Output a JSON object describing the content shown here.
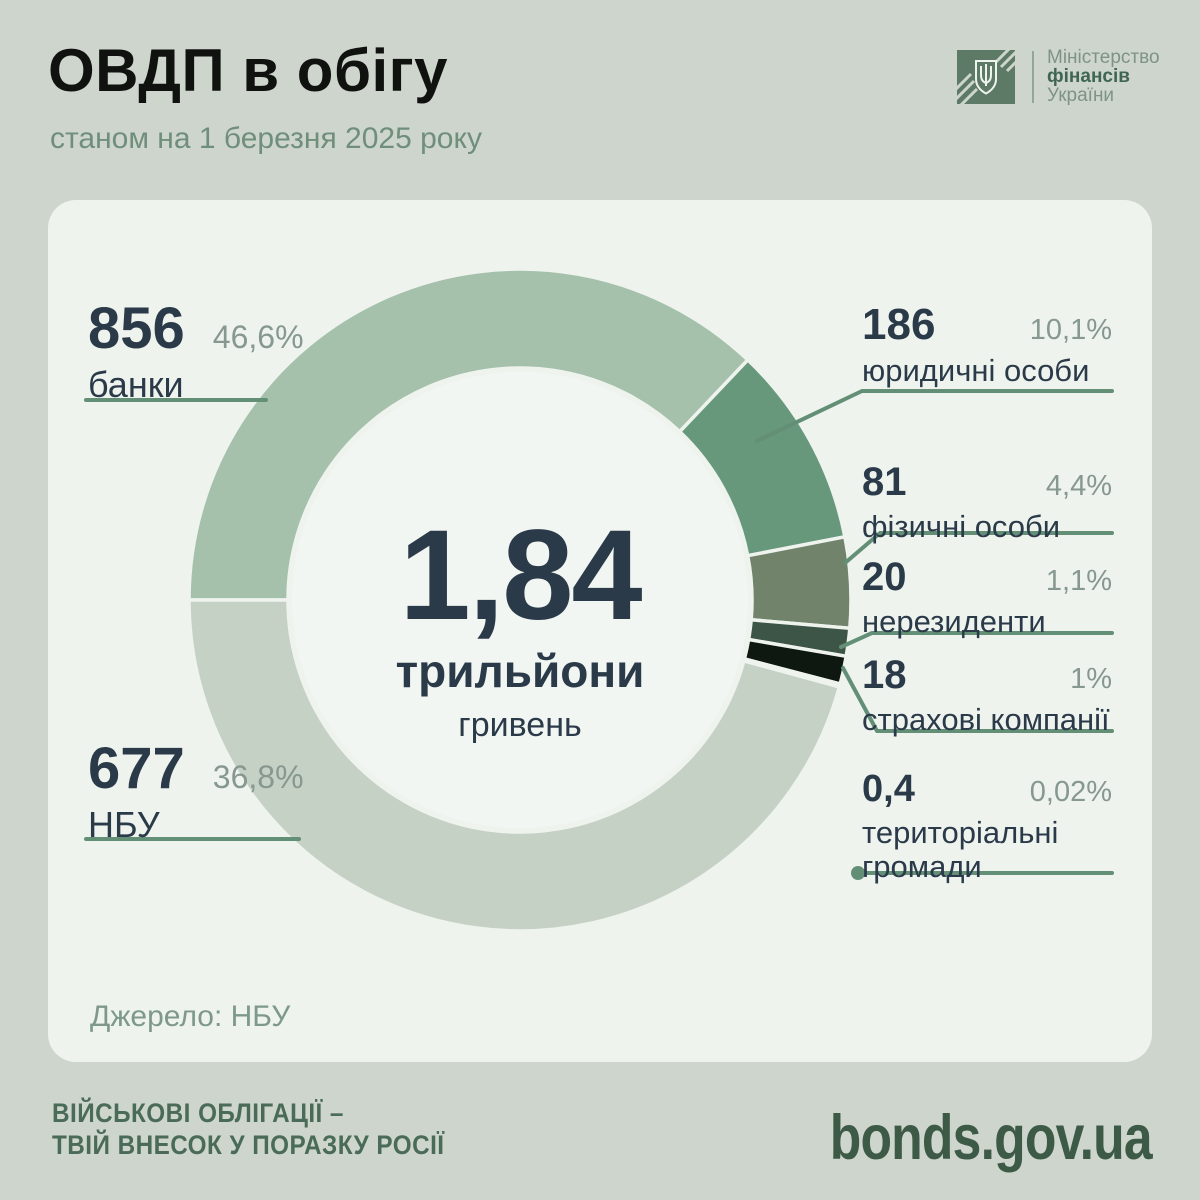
{
  "header": {
    "title": "ОВДП в обігу",
    "subtitle": "станом на 1 березня 2025 року"
  },
  "ministry": {
    "line1": "Міністерство",
    "line2": "фінансів",
    "line3": "України"
  },
  "chart_data": {
    "type": "pie",
    "subtype": "donut",
    "title": "ОВДП в обігу",
    "as_of": "станом на 1 березня 2025 року",
    "center": {
      "value": "1,84",
      "unit": "трильйони",
      "sub": "гривень"
    },
    "source": "НБУ",
    "legend_position": "around",
    "colors": {
      "page_bg": "#ced5cd",
      "card_bg": "#eef3ee",
      "leader_line": "#648f77",
      "number_text": "#2b3a49",
      "percent_text": "#869890"
    },
    "series": [
      {
        "key": "banks",
        "name": "банки",
        "value": 856,
        "percent": "46,6%",
        "color": "#a5c1ac",
        "arc_deg": [
          270,
          403.5
        ]
      },
      {
        "key": "nbu",
        "name": "НБУ",
        "value": 677,
        "percent": "36,8%",
        "color": "#c6d1c5",
        "arc_deg": [
          105.2,
          270
        ]
      },
      {
        "key": "legal-entities",
        "name": "юридичні особи",
        "value": 186,
        "percent": "10,1%",
        "color": "#68987c",
        "arc_deg": [
          43.5,
          79
        ]
      },
      {
        "key": "individuals",
        "name": "фізичні особи",
        "value": 81,
        "percent": "4,4%",
        "color": "#71836a",
        "arc_deg": [
          79,
          94.9
        ]
      },
      {
        "key": "non-residents",
        "name": "нерезиденти",
        "value": 20,
        "percent": "1,1%",
        "color": "#3d5546",
        "arc_deg": [
          94.9,
          99.8
        ]
      },
      {
        "key": "insurance-companies",
        "name": "страхові компанії",
        "value": 18,
        "percent": "1%",
        "color": "#0f1711",
        "arc_deg": [
          99.8,
          104.7
        ]
      },
      {
        "key": "territorial-communities",
        "name": "територіальні громади",
        "value": "0,4",
        "percent": "0,02%",
        "color": "#0f1711",
        "arc_deg": [
          104.7,
          105.2
        ]
      }
    ]
  },
  "source": {
    "label": "Джерело: НБУ"
  },
  "footer": {
    "slogan_line1": "ВІЙСЬКОВІ ОБЛІГАЦІЇ –",
    "slogan_line2": "ТВІЙ ВНЕСОК У ПОРАЗКУ РОСІЇ",
    "site": "bonds.gov.ua"
  }
}
